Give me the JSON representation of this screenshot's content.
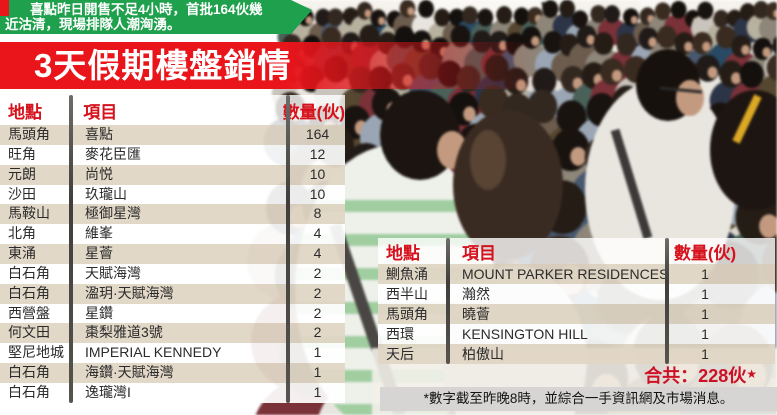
{
  "lead_banner": {
    "line1": "喜點昨日開售不足4小時，首批164伙幾",
    "line2": "近沽清，現場排隊人潮洶湧。"
  },
  "title": "3天假期樓盤銷情",
  "headers": {
    "location": "地點",
    "project": "項目",
    "quantity": "數量(伙)"
  },
  "left_table": [
    {
      "location": "馬頭角",
      "project": "喜點",
      "qty": "164"
    },
    {
      "location": "旺角",
      "project": "麥花臣匯",
      "qty": "12"
    },
    {
      "location": "元朗",
      "project": "尚悦",
      "qty": "10"
    },
    {
      "location": "沙田",
      "project": "玖瓏山",
      "qty": "10"
    },
    {
      "location": "馬鞍山",
      "project": "極御星灣",
      "qty": "8"
    },
    {
      "location": "北角",
      "project": "維峯",
      "qty": "4"
    },
    {
      "location": "東涌",
      "project": "星薈",
      "qty": "4"
    },
    {
      "location": "白石角",
      "project": "天賦海灣",
      "qty": "2"
    },
    {
      "location": "白石角",
      "project": "溋玥·天賦海灣",
      "qty": "2"
    },
    {
      "location": "西營盤",
      "project": "星鑽",
      "qty": "2"
    },
    {
      "location": "何文田",
      "project": "棗梨雅道3號",
      "qty": "2"
    },
    {
      "location": "堅尼地城",
      "project": "IMPERIAL KENNEDY",
      "qty": "1"
    },
    {
      "location": "白石角",
      "project": "海鑽·天賦海灣",
      "qty": "1"
    },
    {
      "location": "白石角",
      "project": "逸瓏灣I",
      "qty": "1"
    }
  ],
  "right_table": [
    {
      "location": "鰂魚涌",
      "project": "MOUNT PARKER RESIDENCES",
      "qty": "1"
    },
    {
      "location": "西半山",
      "project": "瀚然",
      "qty": "1"
    },
    {
      "location": "馬頭角",
      "project": "曉薈",
      "qty": "1"
    },
    {
      "location": "西環",
      "project": "KENSINGTON HILL",
      "qty": "1"
    },
    {
      "location": "天后",
      "project": "柏傲山",
      "qty": "1"
    }
  ],
  "total": {
    "label": "合共：228伙",
    "marker": "★"
  },
  "footnote": "*數字截至昨晚8時，並綜合一手資訊網及市場消息。",
  "colors": {
    "banner_green": "#1fa04c",
    "banner_red": "#e9151b",
    "header_text_red": "#d6121c",
    "row_beige": "#e0d6c5",
    "total_red": "#ce1025",
    "footnote_bar_gray": "#d6d5d3"
  }
}
